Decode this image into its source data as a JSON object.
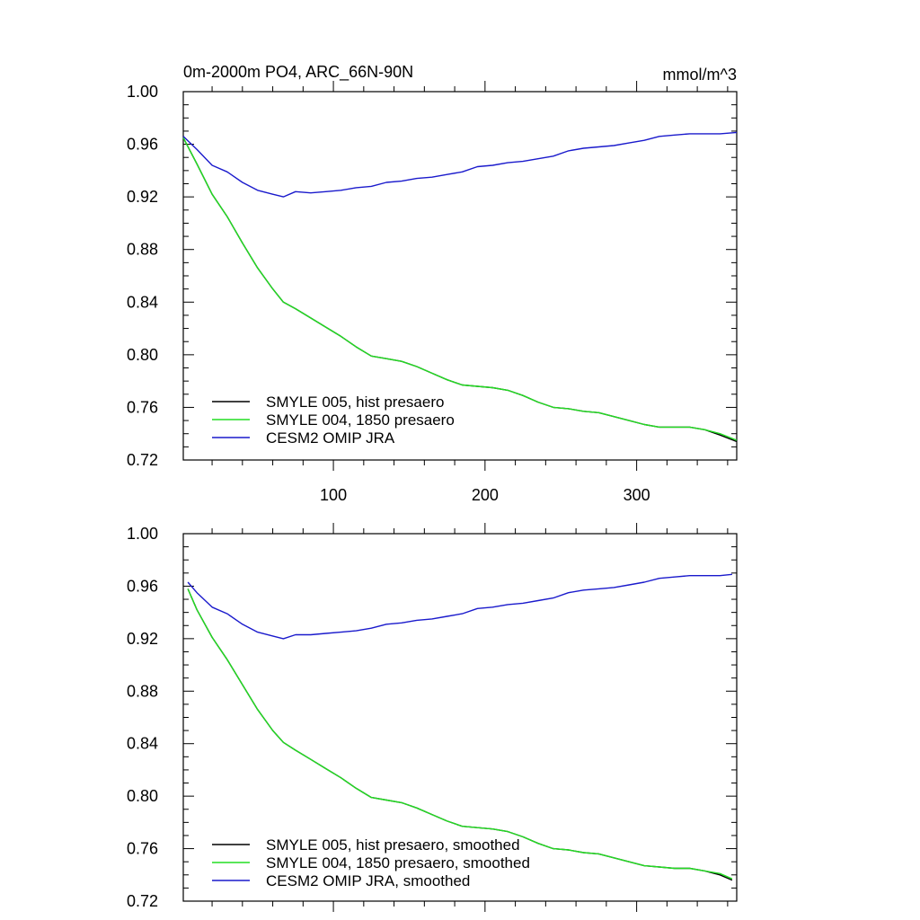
{
  "chart_data": [
    {
      "type": "line",
      "title_left": "0m-2000m PO4, ARC_66N-90N",
      "title_right": "mmol/m^3",
      "xlabel": "",
      "ylabel": "",
      "xlim": [
        1,
        366
      ],
      "ylim": [
        0.72,
        1.0
      ],
      "yticks": [
        0.72,
        0.76,
        0.8,
        0.84,
        0.88,
        0.92,
        0.96,
        1.0
      ],
      "ytick_labels": [
        "0.72",
        "0.76",
        "0.80",
        "0.84",
        "0.88",
        "0.92",
        "0.96",
        "1.00"
      ],
      "xticks": [
        100,
        200,
        300
      ],
      "xtick_labels": [
        "100",
        "200",
        "300"
      ],
      "legend_position": "bottom-left",
      "series": [
        {
          "name": "SMYLE 005, hist presaero",
          "color": "#000000",
          "x": [
            1,
            10,
            20,
            30,
            40,
            50,
            60,
            67,
            75,
            85,
            95,
            105,
            115,
            125,
            135,
            145,
            155,
            165,
            175,
            185,
            195,
            205,
            215,
            225,
            235,
            245,
            255,
            265,
            275,
            285,
            295,
            305,
            315,
            325,
            335,
            345,
            355,
            366
          ],
          "y": [
            0.965,
            0.945,
            0.922,
            0.905,
            0.885,
            0.866,
            0.85,
            0.84,
            0.835,
            0.828,
            0.821,
            0.814,
            0.806,
            0.799,
            0.797,
            0.795,
            0.791,
            0.786,
            0.781,
            0.777,
            0.776,
            0.775,
            0.773,
            0.769,
            0.764,
            0.76,
            0.759,
            0.757,
            0.756,
            0.753,
            0.75,
            0.747,
            0.745,
            0.745,
            0.745,
            0.743,
            0.739,
            0.734
          ]
        },
        {
          "name": "SMYLE 004, 1850 presaero",
          "color": "#22dd22",
          "x": [
            1,
            10,
            20,
            30,
            40,
            50,
            60,
            67,
            75,
            85,
            95,
            105,
            115,
            125,
            135,
            145,
            155,
            165,
            175,
            185,
            195,
            205,
            215,
            225,
            235,
            245,
            255,
            265,
            275,
            285,
            295,
            305,
            315,
            325,
            335,
            345,
            355,
            366
          ],
          "y": [
            0.965,
            0.945,
            0.922,
            0.905,
            0.885,
            0.866,
            0.85,
            0.84,
            0.835,
            0.828,
            0.821,
            0.814,
            0.806,
            0.799,
            0.797,
            0.795,
            0.791,
            0.786,
            0.781,
            0.777,
            0.776,
            0.775,
            0.773,
            0.769,
            0.764,
            0.76,
            0.759,
            0.757,
            0.756,
            0.753,
            0.75,
            0.747,
            0.745,
            0.745,
            0.745,
            0.743,
            0.74,
            0.735
          ]
        },
        {
          "name": "CESM2 OMIP JRA",
          "color": "#1a1acc",
          "x": [
            1,
            10,
            20,
            30,
            40,
            50,
            60,
            67,
            75,
            85,
            95,
            105,
            115,
            125,
            135,
            145,
            155,
            165,
            175,
            185,
            195,
            205,
            215,
            225,
            235,
            245,
            255,
            265,
            275,
            285,
            295,
            305,
            315,
            325,
            335,
            345,
            355,
            366
          ],
          "y": [
            0.966,
            0.956,
            0.944,
            0.939,
            0.931,
            0.925,
            0.922,
            0.92,
            0.924,
            0.923,
            0.924,
            0.925,
            0.927,
            0.928,
            0.931,
            0.932,
            0.934,
            0.935,
            0.937,
            0.939,
            0.943,
            0.944,
            0.946,
            0.947,
            0.949,
            0.951,
            0.955,
            0.957,
            0.958,
            0.959,
            0.961,
            0.963,
            0.966,
            0.967,
            0.968,
            0.968,
            0.968,
            0.969
          ]
        }
      ]
    },
    {
      "type": "line",
      "title_left": "",
      "title_right": "",
      "xlabel": "",
      "ylabel": "",
      "xlim": [
        1,
        366
      ],
      "ylim": [
        0.72,
        1.0
      ],
      "yticks": [
        0.72,
        0.76,
        0.8,
        0.84,
        0.88,
        0.92,
        0.96,
        1.0
      ],
      "ytick_labels": [
        "0.72",
        "0.76",
        "0.80",
        "0.84",
        "0.88",
        "0.92",
        "0.96",
        "1.00"
      ],
      "xticks": [
        100,
        200,
        300
      ],
      "xtick_labels": [],
      "legend_position": "bottom-left",
      "series": [
        {
          "name": "SMYLE 005, hist presaero, smoothed",
          "color": "#000000",
          "x": [
            4,
            10,
            20,
            30,
            40,
            50,
            60,
            67,
            75,
            85,
            95,
            105,
            115,
            125,
            135,
            145,
            155,
            165,
            175,
            185,
            195,
            205,
            215,
            225,
            235,
            245,
            255,
            265,
            275,
            285,
            295,
            305,
            315,
            325,
            335,
            345,
            355,
            363
          ],
          "y": [
            0.958,
            0.942,
            0.921,
            0.904,
            0.885,
            0.866,
            0.85,
            0.841,
            0.835,
            0.828,
            0.821,
            0.814,
            0.806,
            0.799,
            0.797,
            0.795,
            0.791,
            0.786,
            0.781,
            0.777,
            0.776,
            0.775,
            0.773,
            0.769,
            0.764,
            0.76,
            0.759,
            0.757,
            0.756,
            0.753,
            0.75,
            0.747,
            0.746,
            0.745,
            0.745,
            0.743,
            0.74,
            0.736
          ]
        },
        {
          "name": "SMYLE 004, 1850 presaero, smoothed",
          "color": "#22dd22",
          "x": [
            4,
            10,
            20,
            30,
            40,
            50,
            60,
            67,
            75,
            85,
            95,
            105,
            115,
            125,
            135,
            145,
            155,
            165,
            175,
            185,
            195,
            205,
            215,
            225,
            235,
            245,
            255,
            265,
            275,
            285,
            295,
            305,
            315,
            325,
            335,
            345,
            355,
            363
          ],
          "y": [
            0.958,
            0.942,
            0.921,
            0.904,
            0.885,
            0.866,
            0.85,
            0.841,
            0.835,
            0.828,
            0.821,
            0.814,
            0.806,
            0.799,
            0.797,
            0.795,
            0.791,
            0.786,
            0.781,
            0.777,
            0.776,
            0.775,
            0.773,
            0.769,
            0.764,
            0.76,
            0.759,
            0.757,
            0.756,
            0.753,
            0.75,
            0.747,
            0.746,
            0.745,
            0.745,
            0.743,
            0.741,
            0.737
          ]
        },
        {
          "name": "CESM2 OMIP JRA, smoothed",
          "color": "#1a1acc",
          "x": [
            4,
            10,
            20,
            30,
            40,
            50,
            60,
            67,
            75,
            85,
            95,
            105,
            115,
            125,
            135,
            145,
            155,
            165,
            175,
            185,
            195,
            205,
            215,
            225,
            235,
            245,
            255,
            265,
            275,
            285,
            295,
            305,
            315,
            325,
            335,
            345,
            355,
            363
          ],
          "y": [
            0.963,
            0.955,
            0.944,
            0.939,
            0.931,
            0.925,
            0.922,
            0.92,
            0.923,
            0.923,
            0.924,
            0.925,
            0.926,
            0.928,
            0.931,
            0.932,
            0.934,
            0.935,
            0.937,
            0.939,
            0.943,
            0.944,
            0.946,
            0.947,
            0.949,
            0.951,
            0.955,
            0.957,
            0.958,
            0.959,
            0.961,
            0.963,
            0.966,
            0.967,
            0.968,
            0.968,
            0.968,
            0.969
          ]
        }
      ]
    }
  ]
}
